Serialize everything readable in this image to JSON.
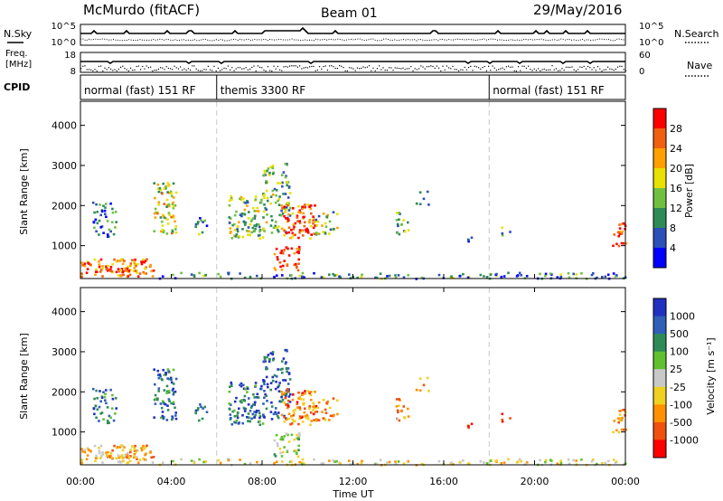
{
  "header": {
    "station": "McMurdo (fitACF)",
    "beam": "Beam 01",
    "date": "29/May/2016"
  },
  "panels": {
    "nsky_label": "N.Sky",
    "nsearch_label": "N.Search",
    "freq_label_1": "Freq.",
    "freq_label_2": "[MHz]",
    "nave_label": "Nave",
    "cpid_label": "CPID",
    "count_ticks": [
      "10^5",
      "10^0"
    ],
    "freq_ticks": [
      "18",
      "8"
    ],
    "nave_ticks": [
      "60",
      "0"
    ]
  },
  "cpid_segments": [
    {
      "label": "normal (fast) 151 RF",
      "start_h": 0.0,
      "end_h": 6.0
    },
    {
      "label": "themis 3300 RF",
      "start_h": 6.0,
      "end_h": 18.0
    },
    {
      "label": "normal (fast) 151 RF",
      "start_h": 18.0,
      "end_h": 24.0
    }
  ],
  "xaxis": {
    "label": "Time UT",
    "ticks": [
      "00:00",
      "04:00",
      "08:00",
      "12:00",
      "16:00",
      "20:00",
      "00:00"
    ],
    "range_h": [
      0,
      24
    ]
  },
  "yaxis": {
    "label": "Slant Range [km]",
    "ticks": [
      1000,
      2000,
      3000,
      4000
    ],
    "range_km": [
      180,
      4600
    ]
  },
  "power_scale": {
    "label": "Power [dB]",
    "ticks": [
      "4",
      "8",
      "12",
      "16",
      "20",
      "24",
      "28"
    ],
    "colors": [
      "#0000ff",
      "#2c4fb8",
      "#2e8b57",
      "#70c040",
      "#e8e000",
      "#ffa000",
      "#f06010",
      "#ff0000"
    ]
  },
  "velocity_scale": {
    "label": "Velocity [m s⁻¹]",
    "ticks": [
      "1000",
      "500",
      "100",
      "25",
      "-25",
      "-100",
      "-500",
      "-1000"
    ],
    "colors": [
      "#2030c0",
      "#2f5fb8",
      "#2e8b57",
      "#60c030",
      "#c8c8c8",
      "#f0d020",
      "#ff9000",
      "#f05010",
      "#ff0000"
    ]
  },
  "chart_data": {
    "type": "heatmap",
    "title": "McMurdo (fitACF) Beam 01 29/May/2016",
    "xlabel": "Time UT",
    "ylabel": "Slant Range [km]",
    "xlim": [
      0,
      24
    ],
    "ylim": [
      180,
      4600
    ],
    "blobs": [
      {
        "t0": 0.0,
        "t1": 3.2,
        "r0": 250,
        "r1": 700,
        "p": 0.75,
        "v": 0.65,
        "density": 0.85
      },
      {
        "t0": 3.2,
        "t1": 24.0,
        "r0": 200,
        "r1": 350,
        "p": 0.3,
        "v": 0.55,
        "density": 0.45
      },
      {
        "t0": 0.5,
        "t1": 1.6,
        "r0": 1200,
        "r1": 2100,
        "p": 0.25,
        "v": 0.2,
        "density": 0.45
      },
      {
        "t0": 3.2,
        "t1": 4.2,
        "r0": 1300,
        "r1": 2600,
        "p": 0.55,
        "v": 0.2,
        "density": 0.6
      },
      {
        "t0": 5.0,
        "t1": 5.6,
        "r0": 1300,
        "r1": 1800,
        "p": 0.3,
        "v": 0.15,
        "density": 0.4
      },
      {
        "t0": 6.5,
        "t1": 8.0,
        "r0": 1200,
        "r1": 2300,
        "p": 0.45,
        "v": 0.2,
        "density": 0.6
      },
      {
        "t0": 8.0,
        "t1": 9.2,
        "r0": 1300,
        "r1": 3100,
        "p": 0.4,
        "v": 0.15,
        "density": 0.5
      },
      {
        "t0": 8.8,
        "t1": 10.3,
        "r0": 1200,
        "r1": 2100,
        "p": 0.8,
        "v": 0.75,
        "density": 0.7
      },
      {
        "t0": 10.3,
        "t1": 11.3,
        "r0": 1300,
        "r1": 1900,
        "p": 0.45,
        "v": 0.75,
        "density": 0.5
      },
      {
        "t0": 8.5,
        "t1": 9.6,
        "r0": 400,
        "r1": 1000,
        "p": 0.85,
        "v": 0.4,
        "density": 0.6
      },
      {
        "t0": 13.8,
        "t1": 14.5,
        "r0": 1300,
        "r1": 1900,
        "p": 0.4,
        "v": 0.7,
        "density": 0.45
      },
      {
        "t0": 14.7,
        "t1": 15.3,
        "r0": 2000,
        "r1": 2400,
        "p": 0.3,
        "v": 0.7,
        "density": 0.3
      },
      {
        "t0": 23.4,
        "t1": 24.0,
        "r0": 1000,
        "r1": 1600,
        "p": 0.85,
        "v": 0.7,
        "density": 0.6
      },
      {
        "t0": 16.8,
        "t1": 17.3,
        "r0": 1100,
        "r1": 1500,
        "p": 0.3,
        "v": 0.85,
        "density": 0.2
      },
      {
        "t0": 18.5,
        "t1": 19.0,
        "r0": 1200,
        "r1": 1600,
        "p": 0.3,
        "v": 0.85,
        "density": 0.2
      }
    ]
  }
}
